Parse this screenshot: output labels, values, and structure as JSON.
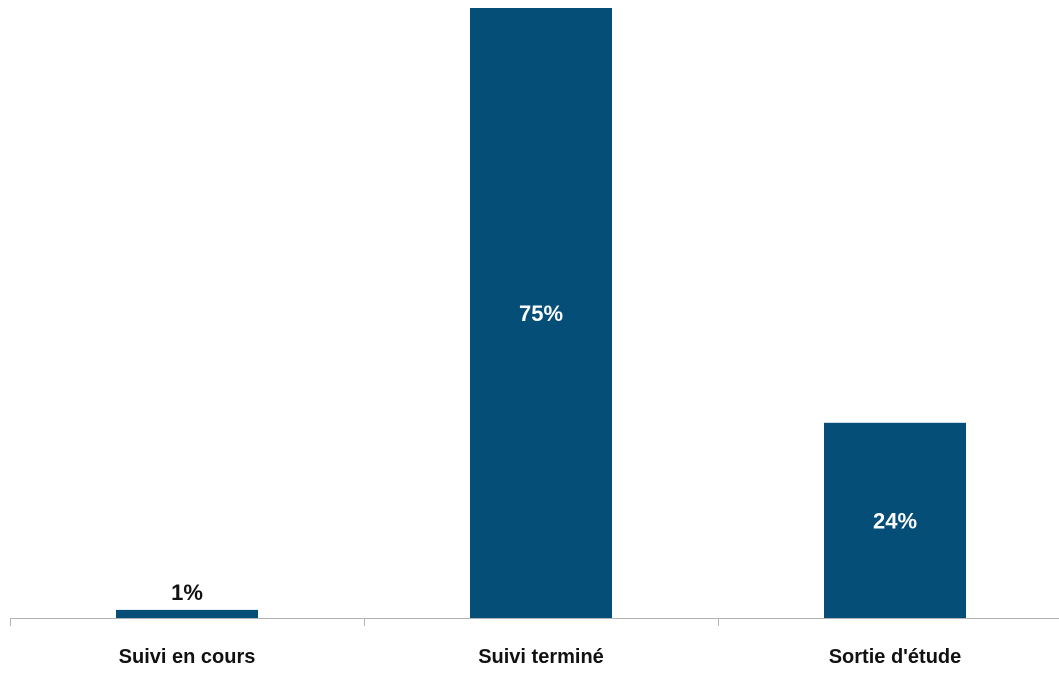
{
  "chart_data": {
    "type": "bar",
    "categories": [
      "Suivi en cours",
      "Suivi terminé",
      "Sortie d'étude"
    ],
    "values": [
      1,
      75,
      24
    ],
    "data_labels": [
      "1%",
      "75%",
      "24%"
    ],
    "unit": "%",
    "ylim": [
      0,
      75
    ],
    "grid": false,
    "legend": "none",
    "colors": {
      "bar": "#044e78",
      "axis": "#b3b3b3",
      "label_outside": "#111111",
      "label_inside": "#ffffff"
    }
  }
}
